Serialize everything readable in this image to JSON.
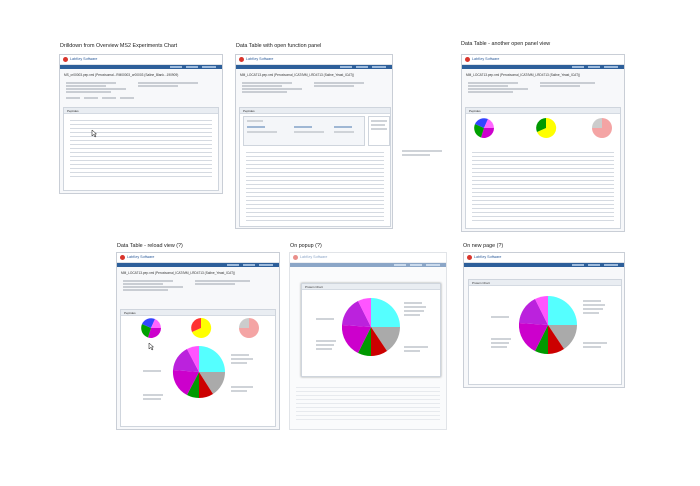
{
  "captions": {
    "t1": "Drilldown from Overview MS2 Experiments Chart",
    "t2": "Data Table with open function panel",
    "t3": "Data Table - another open panel view",
    "t4": "Data Table - reload view (?)",
    "t5": "On popup (?)",
    "t6": "On new page (?)"
  },
  "app": {
    "brand": "LabKey Software"
  },
  "thumbs": {
    "t1_title": "MS_cr00003.pep.xml (Peroxisomal...RM00003_cr00003 (Saline_Blank...190909)",
    "t2_title": "MM_LOCAT13.pep.xml (Peroxisomal_ICAT/MM_LRD4713 (Saline_Yeast_ICAT))",
    "t3_title": "MM_LOCAT13.pep.xml (Peroxisomal_ICAT/MM_LRD4713 (Saline_Yeast_ICAT))",
    "t4_title": "MM_LOCAT13.pep.xml (Peroxisomal_ICAT/MM_LRD4713 (Saline_Yeast_ICAT))",
    "panel_peptides": "Peptides",
    "panel_chart": "Protein Chart"
  },
  "colors": {
    "accent": "#2d5f9a",
    "logo": "#d9352c"
  }
}
